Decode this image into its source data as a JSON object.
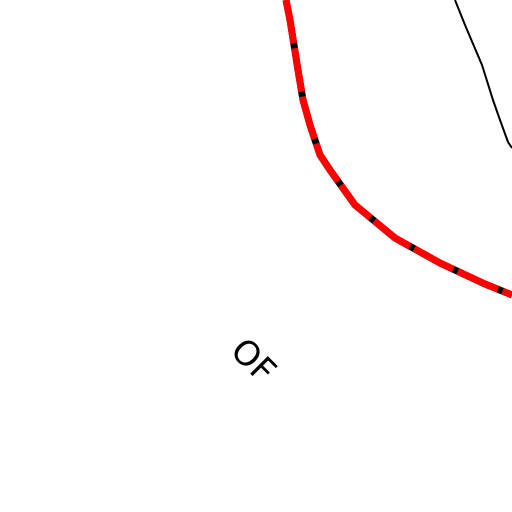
{
  "map": {
    "labels": [
      "OF"
    ]
  }
}
